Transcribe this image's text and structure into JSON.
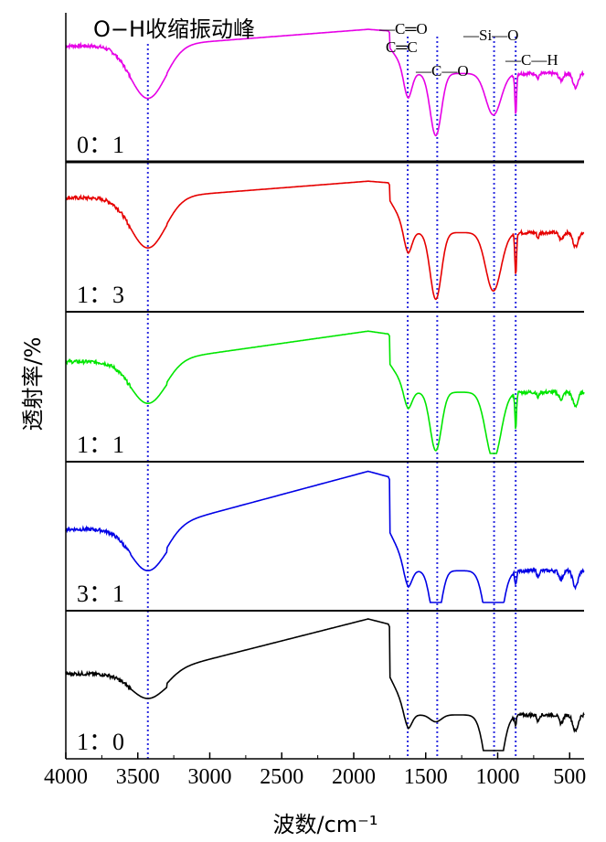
{
  "chart_data": {
    "type": "line",
    "title": "",
    "xlabel": "波数/cm⁻¹",
    "ylabel": "透射率/%",
    "xlim": [
      4000,
      400
    ],
    "x_ticks": [
      "4000",
      "3500",
      "3000",
      "2500",
      "2000",
      "1500",
      "1000",
      "500"
    ],
    "x_reversed": true,
    "grid": false,
    "annotation_title": "O−H收缩振动峰",
    "peak_labels": {
      "c_eq_o": "—C═O",
      "c_eq_c": "C═C",
      "c_o": "—C—O",
      "si_o": "—Si—O",
      "c_h": "—C—H"
    },
    "reference_lines_cm": [
      3430,
      1625,
      1420,
      1025,
      875
    ],
    "panels": [
      {
        "name": "0：1",
        "color": "#e600e6"
      },
      {
        "name": "1：3",
        "color": "#e60000"
      },
      {
        "name": "1：1",
        "color": "#00e600"
      },
      {
        "name": "3：1",
        "color": "#0000e6"
      },
      {
        "name": "1：0",
        "color": "#000000"
      }
    ]
  }
}
